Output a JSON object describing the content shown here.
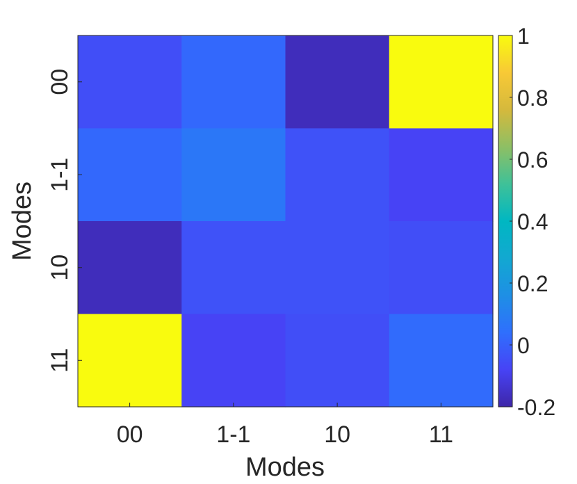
{
  "chart_data": {
    "type": "heatmap",
    "title": "",
    "xlabel": "Modes",
    "ylabel": "Modes",
    "x_categories": [
      "00",
      "1-1",
      "10",
      "11"
    ],
    "y_categories": [
      "00",
      "1-1",
      "10",
      "11"
    ],
    "values": [
      [
        -0.05,
        0.02,
        -0.17,
        1.0
      ],
      [
        0.02,
        0.07,
        -0.04,
        -0.08
      ],
      [
        -0.17,
        -0.04,
        -0.04,
        -0.05
      ],
      [
        1.0,
        -0.08,
        -0.05,
        0.03
      ]
    ],
    "colorbar": {
      "min": -0.2,
      "max": 1.0,
      "ticks": [
        -0.2,
        0,
        0.2,
        0.4,
        0.6,
        0.8,
        1
      ],
      "tick_labels": [
        "-0.2",
        "0",
        "0.2",
        "0.4",
        "0.6",
        "0.8",
        "1"
      ],
      "colormap": "parula"
    }
  }
}
